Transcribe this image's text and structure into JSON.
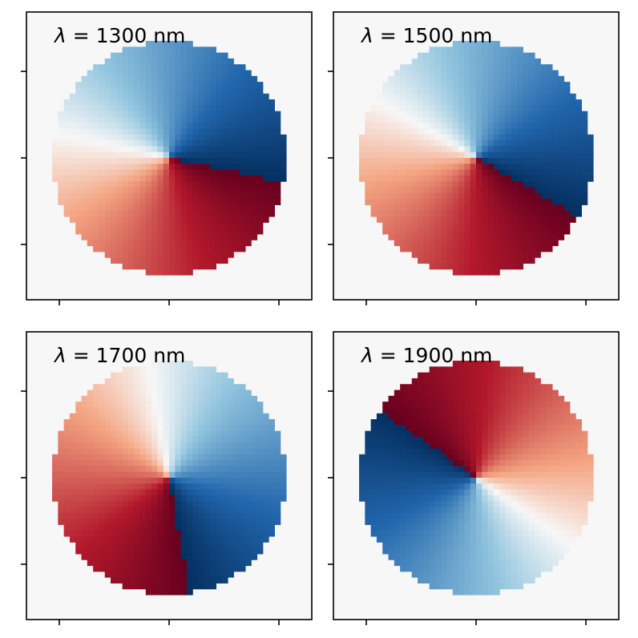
{
  "chart_data": {
    "type": "heatmap",
    "description_colormap": "diverging red-white-blue (RdBu)",
    "colors": {
      "background": "#f7f7f7",
      "deep_red": "#67001f",
      "red": "#b2182b",
      "light_red": "#f4a582",
      "white": "#f7f7f7",
      "light_blue": "#92c5de",
      "blue": "#2166ac",
      "deep_blue": "#053061"
    },
    "grid_size": 40,
    "aperture_radius_fraction": 0.41,
    "panels": [
      {
        "title_symbol": "λ",
        "title_text": " = 1300 nm",
        "wavelength_nm": 1300,
        "phase_discontinuity_angle_deg": -12,
        "phase_rotation_direction": 1,
        "phase_offset_deg": 0
      },
      {
        "title_symbol": "λ",
        "title_text": " = 1500 nm",
        "wavelength_nm": 1500,
        "phase_discontinuity_angle_deg": -30,
        "phase_rotation_direction": 1,
        "phase_offset_deg": 0
      },
      {
        "title_symbol": "λ",
        "title_text": " = 1700 nm",
        "wavelength_nm": 1700,
        "phase_discontinuity_angle_deg": -80,
        "phase_rotation_direction": 1,
        "phase_offset_deg": 0
      },
      {
        "title_symbol": "λ",
        "title_text": " = 1900 nm",
        "wavelength_nm": 1900,
        "phase_discontinuity_angle_deg": 145,
        "phase_rotation_direction": 1,
        "phase_offset_deg": 0
      }
    ],
    "x_ticks": 3,
    "y_ticks": 3,
    "tick_labels": "none",
    "grid": false,
    "legend": "none"
  }
}
